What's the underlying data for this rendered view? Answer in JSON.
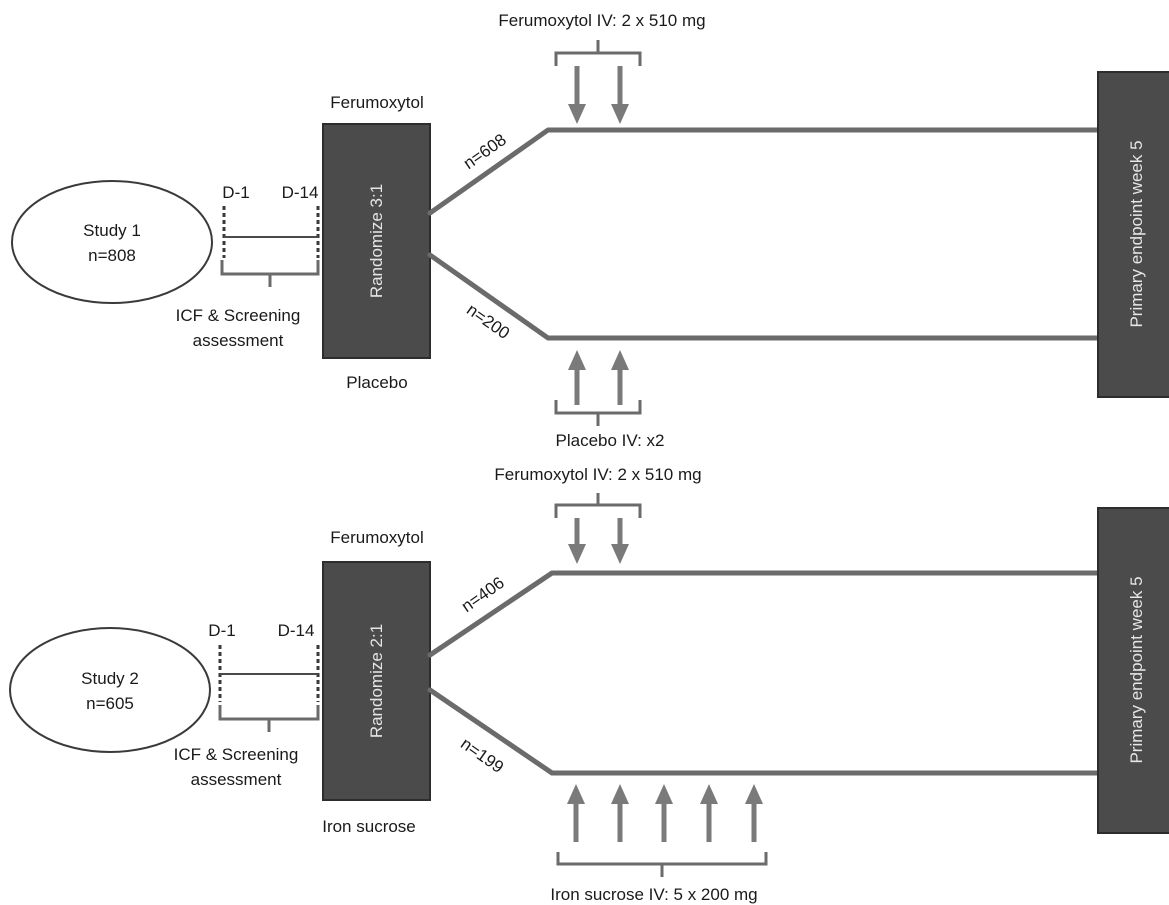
{
  "studies": [
    {
      "oval_line1": "Study 1",
      "oval_line2": "n=808",
      "day_start": "D-1",
      "day_end": "D-14",
      "screening_line1": "ICF & Screening",
      "screening_line2": "assessment",
      "randomize": "Randomize 3:1",
      "top_arm_name": "Ferumoxytol",
      "bottom_arm_name": "Placebo",
      "top_n": "n=608",
      "bottom_n": "n=200",
      "top_dose": "Ferumoxytol IV: 2 x 510 mg",
      "bottom_dose": "Placebo IV: x2",
      "top_dose_arrows": 2,
      "bottom_dose_arrows": 2,
      "endpoint": "Primary endpoint week 5"
    },
    {
      "oval_line1": "Study 2",
      "oval_line2": "n=605",
      "day_start": "D-1",
      "day_end": "D-14",
      "screening_line1": "ICF & Screening",
      "screening_line2": "assessment",
      "randomize": "Randomize 2:1",
      "top_arm_name": "Ferumoxytol",
      "bottom_arm_name": "Iron sucrose",
      "top_n": "n=406",
      "bottom_n": "n=199",
      "top_dose": "Ferumoxytol IV: 2 x 510 mg",
      "bottom_dose": "Iron sucrose IV: 5 x 200 mg",
      "top_dose_arrows": 2,
      "bottom_dose_arrows": 5,
      "endpoint": "Primary endpoint week 5"
    }
  ],
  "colors": {
    "box_fill": "#4b4b4b",
    "path": "#6b6b6b",
    "arrow": "#7a7a7a"
  }
}
